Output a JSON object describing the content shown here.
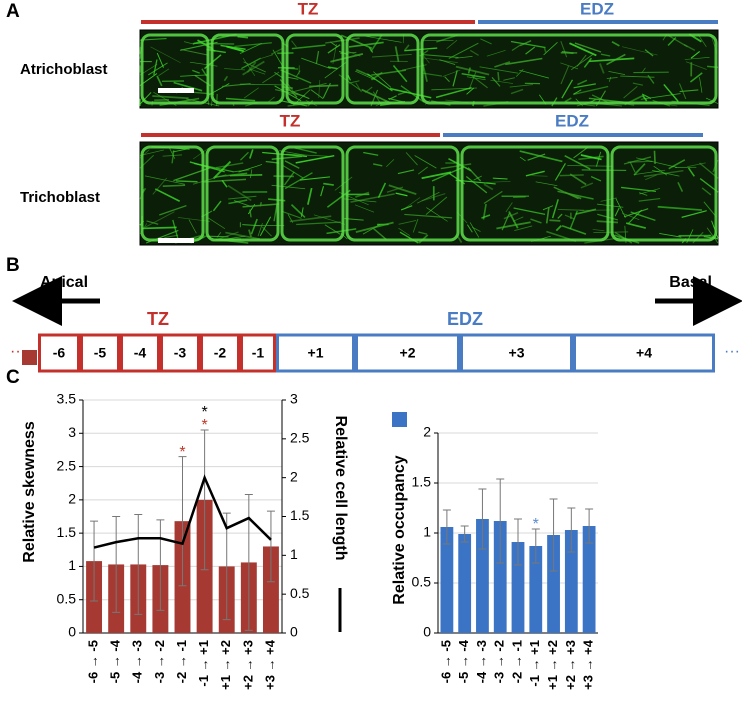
{
  "panel_labels": [
    "A",
    "B",
    "C"
  ],
  "panel_a": {
    "rows": [
      {
        "label": "Atrichoblast",
        "zones": [
          "TZ",
          "EDZ"
        ]
      },
      {
        "label": "Trichoblast",
        "zones": [
          "TZ",
          "EDZ"
        ]
      }
    ]
  },
  "panel_b": {
    "left": "Apical",
    "right": "Basal",
    "zones": [
      "TZ",
      "EDZ"
    ],
    "tz_cells": [
      "-6",
      "-5",
      "-4",
      "-3",
      "-2",
      "-1"
    ],
    "edz_cells": [
      "+1",
      "+2",
      "+3",
      "+4"
    ],
    "ellipsis": "···"
  },
  "chart_data": [
    {
      "type": "bar",
      "ylabel": "Relative skewness",
      "y2label": "Relative cell length",
      "categories": [
        "-6 → -5",
        "-5 → -4",
        "-4 → -3",
        "-3 → -2",
        "-2 → -1",
        "-1 → +1",
        "+1 → +2",
        "+2 → +3",
        "+3 → +4"
      ],
      "series": [
        {
          "type": "bar",
          "color": "#a63a32",
          "values": [
            1.08,
            1.03,
            1.03,
            1.02,
            1.68,
            2.0,
            1.0,
            1.06,
            1.3
          ],
          "errors": [
            0.6,
            0.72,
            0.75,
            0.68,
            0.97,
            1.05,
            0.8,
            1.02,
            0.53
          ]
        },
        {
          "type": "line",
          "axis": "y2",
          "color": "#000000",
          "values": [
            1.1,
            1.17,
            1.22,
            1.22,
            1.15,
            2.0,
            1.35,
            1.48,
            1.2
          ]
        }
      ],
      "ylim": [
        0,
        3.5
      ],
      "yticks": [
        0,
        0.5,
        1,
        1.5,
        2,
        2.5,
        3,
        3.5
      ],
      "y2lim": [
        0,
        3
      ],
      "y2ticks": [
        0,
        0.5,
        1,
        1.5,
        2,
        2.5,
        3
      ],
      "grid": true,
      "annotations": [
        {
          "text": "*",
          "color": "#c0392b",
          "category": "-2 → -1"
        },
        {
          "text": "*",
          "color": "#c0392b",
          "category": "-1 → +1"
        },
        {
          "text": "*",
          "color": "#000000",
          "category": "-1 → +1"
        }
      ]
    },
    {
      "type": "bar",
      "ylabel": "Relative occupancy",
      "categories": [
        "-6 → -5",
        "-5 → -4",
        "-4 → -3",
        "-3 → -2",
        "-2 → -1",
        "-1 → +1",
        "+1 → +2",
        "+2 → +3",
        "+3 → +4"
      ],
      "series": [
        {
          "type": "bar",
          "color": "#3b74c4",
          "values": [
            1.06,
            0.99,
            1.14,
            1.12,
            0.91,
            0.87,
            0.98,
            1.03,
            1.07
          ],
          "errors": [
            0.17,
            0.08,
            0.3,
            0.42,
            0.23,
            0.17,
            0.36,
            0.22,
            0.17
          ]
        }
      ],
      "ylim": [
        0,
        2
      ],
      "yticks": [
        0,
        0.5,
        1,
        1.5,
        2
      ],
      "grid": true,
      "annotations": [
        {
          "text": "*",
          "color": "#5b8fd0",
          "category": "-1 → +1"
        }
      ]
    }
  ]
}
